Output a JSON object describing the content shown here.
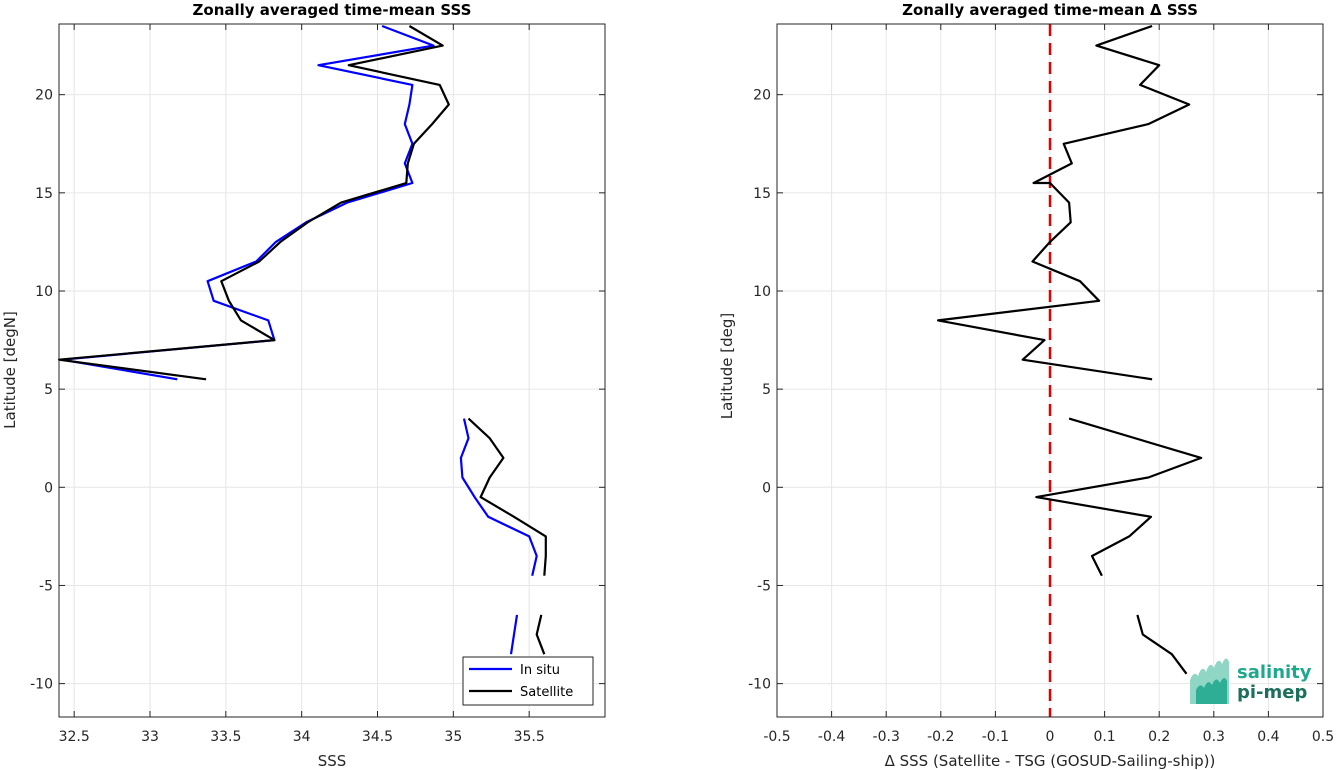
{
  "chart_data": [
    {
      "type": "line",
      "title": "Zonally averaged time-mean SSS",
      "xlabel": "SSS",
      "ylabel": "Latitude [degN]",
      "xlim": [
        32.4,
        36.0
      ],
      "ylim": [
        -11.7,
        23.6
      ],
      "xticks": [
        "32.5",
        "33",
        "33.5",
        "34",
        "34.5",
        "35",
        "35.5"
      ],
      "yticks": [
        "-10",
        "-5",
        "0",
        "5",
        "10",
        "15",
        "20"
      ],
      "grid": true,
      "legend_position": "bottom-right",
      "series": [
        {
          "name": "In situ",
          "color": "#0000ff",
          "segments": [
            [
              [
                34.53,
                23.5
              ],
              [
                34.87,
                22.5
              ],
              [
                34.11,
                21.5
              ],
              [
                34.73,
                20.5
              ],
              [
                34.71,
                19.5
              ],
              [
                34.68,
                18.5
              ],
              [
                34.73,
                17.5
              ],
              [
                34.68,
                16.5
              ],
              [
                34.73,
                15.5
              ],
              [
                34.3,
                14.5
              ],
              [
                34.03,
                13.5
              ],
              [
                33.83,
                12.5
              ],
              [
                33.7,
                11.5
              ],
              [
                33.38,
                10.5
              ],
              [
                33.42,
                9.5
              ],
              [
                33.78,
                8.5
              ],
              [
                33.82,
                7.5
              ],
              [
                32.42,
                6.5
              ],
              [
                33.18,
                5.5
              ]
            ],
            [
              [
                35.07,
                3.5
              ],
              [
                35.1,
                2.5
              ],
              [
                35.05,
                1.5
              ],
              [
                35.06,
                0.5
              ],
              [
                35.14,
                -0.5
              ],
              [
                35.23,
                -1.5
              ],
              [
                35.5,
                -2.5
              ],
              [
                35.55,
                -3.5
              ],
              [
                35.52,
                -4.5
              ]
            ],
            [
              [
                35.42,
                -6.5
              ],
              [
                35.4,
                -7.5
              ],
              [
                35.38,
                -8.5
              ]
            ]
          ]
        },
        {
          "name": "Satellite",
          "color": "#000000",
          "segments": [
            [
              [
                34.71,
                23.5
              ],
              [
                34.93,
                22.5
              ],
              [
                34.31,
                21.5
              ],
              [
                34.91,
                20.5
              ],
              [
                34.97,
                19.5
              ],
              [
                34.86,
                18.5
              ],
              [
                34.74,
                17.5
              ],
              [
                34.7,
                16.5
              ],
              [
                34.69,
                15.5
              ],
              [
                34.26,
                14.5
              ],
              [
                34.04,
                13.5
              ],
              [
                33.86,
                12.5
              ],
              [
                33.72,
                11.5
              ],
              [
                33.47,
                10.5
              ],
              [
                33.52,
                9.5
              ],
              [
                33.6,
                8.5
              ],
              [
                33.82,
                7.5
              ],
              [
                32.4,
                6.5
              ],
              [
                33.37,
                5.5
              ]
            ],
            [
              [
                35.1,
                3.5
              ],
              [
                35.24,
                2.5
              ],
              [
                35.33,
                1.5
              ],
              [
                35.24,
                0.5
              ],
              [
                35.18,
                -0.5
              ],
              [
                35.4,
                -1.5
              ],
              [
                35.61,
                -2.5
              ],
              [
                35.61,
                -3.5
              ],
              [
                35.6,
                -4.5
              ]
            ],
            [
              [
                35.58,
                -6.5
              ],
              [
                35.55,
                -7.5
              ],
              [
                35.6,
                -8.5
              ]
            ]
          ]
        }
      ]
    },
    {
      "type": "line",
      "title": "Zonally averaged time-mean Δ SSS",
      "xlabel": "Δ SSS (Satellite - TSG (GOSUD-Sailing-ship))",
      "ylabel": "Latitude [deg]",
      "xlim": [
        -0.5,
        0.5
      ],
      "ylim": [
        -11.7,
        23.6
      ],
      "xticks": [
        "-0.5",
        "-0.4",
        "-0.3",
        "-0.2",
        "-0.1",
        "0",
        "0.1",
        "0.2",
        "0.3",
        "0.4",
        "0.5"
      ],
      "yticks": [
        "-10",
        "-5",
        "0",
        "5",
        "10",
        "15",
        "20"
      ],
      "grid": true,
      "reference_line": {
        "x": 0,
        "color": "#e00000",
        "style": "dashed"
      },
      "series": [
        {
          "color": "#000000",
          "segments": [
            [
              [
                0.187,
                23.5
              ],
              [
                0.085,
                22.5
              ],
              [
                0.2,
                21.5
              ],
              [
                0.165,
                20.5
              ],
              [
                0.255,
                19.5
              ],
              [
                0.18,
                18.5
              ],
              [
                0.025,
                17.5
              ],
              [
                0.04,
                16.5
              ],
              [
                -0.03,
                15.5
              ],
              [
                0.0,
                15.5
              ],
              [
                0.035,
                14.5
              ],
              [
                0.038,
                13.5
              ],
              [
                0.0,
                12.5
              ],
              [
                -0.032,
                11.5
              ],
              [
                0.055,
                10.5
              ],
              [
                0.09,
                9.5
              ],
              [
                -0.205,
                8.5
              ],
              [
                -0.01,
                7.5
              ],
              [
                -0.05,
                6.5
              ],
              [
                0.187,
                5.5
              ]
            ],
            [
              [
                0.035,
                3.5
              ],
              [
                0.277,
                1.5
              ],
              [
                0.18,
                0.5
              ],
              [
                -0.025,
                -0.5
              ],
              [
                0.185,
                -1.5
              ],
              [
                0.145,
                -2.5
              ],
              [
                0.077,
                -3.5
              ],
              [
                0.095,
                -4.5
              ]
            ],
            [
              [
                0.16,
                -6.5
              ],
              [
                0.17,
                -7.5
              ],
              [
                0.223,
                -8.5
              ],
              [
                0.25,
                -9.5
              ]
            ]
          ]
        }
      ]
    }
  ],
  "logo": {
    "line1": "salinity",
    "line2": "pi-mep"
  }
}
